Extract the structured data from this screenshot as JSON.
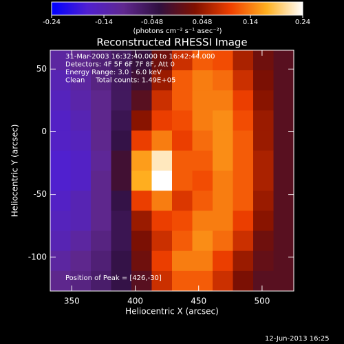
{
  "chart_data": {
    "type": "heatmap",
    "title": "Reconstructed RHESSI Image",
    "x_label": "Heliocentric X (arcsec)",
    "y_label": "Heliocentric Y (arcsec)",
    "colorbar_label": "(photons cm⁻² s⁻¹ asec⁻²)",
    "annotations": [
      "31-Mar-2003 16:32:40.000 to 16:42:44.000",
      "Detectors: 4F 5F 6F 7F 8F, Att 0",
      "Energy Range: 3.0 - 6.0 keV",
      "Clean     Total counts: 1.49E+05"
    ],
    "peak_note": "Position of Peak = [426,-30]",
    "footer": "12-Jun-2013 16:25",
    "xlim": [
      333,
      525
    ],
    "ylim": [
      -127,
      65
    ],
    "xticks": [
      350,
      400,
      450,
      500
    ],
    "yticks": [
      50,
      0,
      -50,
      -100
    ],
    "zlim": [
      -0.24,
      0.24
    ],
    "zticks": [
      -0.24,
      -0.14,
      -0.048,
      0.048,
      0.14,
      0.24
    ],
    "colormap": [
      "#0000ff",
      "#5020d0",
      "#602890",
      "#301040",
      "#801000",
      "#f04000",
      "#ffb020",
      "#ffffff"
    ],
    "xbins": [
      333,
      349,
      365,
      381,
      397,
      413,
      429,
      445,
      461,
      477,
      493,
      509,
      525
    ],
    "ybins": [
      65,
      49,
      33,
      17,
      1,
      -15,
      -31,
      -47,
      -63,
      -79,
      -95,
      -111,
      -127
    ],
    "z": [
      [
        -0.12,
        -0.1,
        -0.08,
        -0.06,
        -0.03,
        0.02,
        0.08,
        0.12,
        0.11,
        0.06,
        0.02,
        0.0
      ],
      [
        -0.14,
        -0.12,
        -0.09,
        -0.06,
        -0.02,
        0.05,
        0.12,
        0.14,
        0.13,
        0.08,
        0.03,
        0.0
      ],
      [
        -0.15,
        -0.13,
        -0.1,
        -0.06,
        0.0,
        0.08,
        0.12,
        0.14,
        0.14,
        0.1,
        0.04,
        0.0
      ],
      [
        -0.16,
        -0.14,
        -0.1,
        -0.05,
        0.04,
        0.1,
        0.11,
        0.14,
        0.15,
        0.11,
        0.05,
        0.0
      ],
      [
        -0.16,
        -0.15,
        -0.1,
        -0.04,
        0.1,
        0.14,
        0.1,
        0.13,
        0.15,
        0.12,
        0.05,
        0.0
      ],
      [
        -0.17,
        -0.16,
        -0.11,
        -0.02,
        0.16,
        0.22,
        0.12,
        0.12,
        0.15,
        0.12,
        0.06,
        0.0
      ],
      [
        -0.17,
        -0.16,
        -0.1,
        -0.02,
        0.17,
        0.24,
        0.12,
        0.11,
        0.14,
        0.12,
        0.06,
        0.0
      ],
      [
        -0.16,
        -0.14,
        -0.1,
        -0.04,
        0.1,
        0.14,
        0.09,
        0.12,
        0.14,
        0.12,
        0.05,
        0.0
      ],
      [
        -0.15,
        -0.14,
        -0.1,
        -0.05,
        0.05,
        0.1,
        0.11,
        0.14,
        0.14,
        0.1,
        0.04,
        0.0
      ],
      [
        -0.14,
        -0.12,
        -0.09,
        -0.05,
        0.03,
        0.08,
        0.12,
        0.15,
        0.13,
        0.08,
        0.02,
        0.0
      ],
      [
        -0.12,
        -0.1,
        -0.08,
        -0.04,
        0.02,
        0.1,
        0.14,
        0.14,
        0.1,
        0.05,
        0.01,
        0.0
      ],
      [
        -0.1,
        -0.09,
        -0.07,
        -0.04,
        0.0,
        0.08,
        0.12,
        0.12,
        0.08,
        0.03,
        0.0,
        0.0
      ]
    ]
  }
}
